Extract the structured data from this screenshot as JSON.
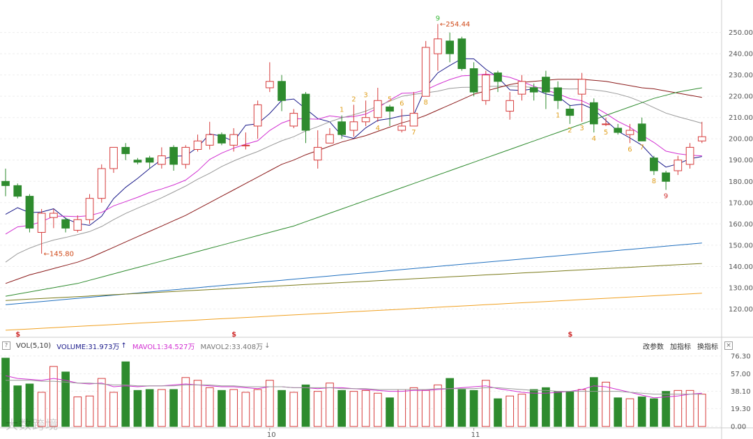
{
  "chart_data": {
    "type": "candlestick",
    "price_axis": {
      "ticks": [
        120,
        130,
        140,
        150,
        160,
        170,
        180,
        190,
        200,
        210,
        220,
        230,
        240,
        250
      ],
      "labels": [
        "120.00",
        "130.00",
        "140.00",
        "150.00",
        "160.00",
        "170.00",
        "180.00",
        "190.00",
        "200.00",
        "210.00",
        "220.00",
        "230.00",
        "240.00",
        "250.00"
      ],
      "ylim": [
        108,
        262
      ]
    },
    "volume_axis": {
      "labels": [
        "0.00",
        "19.30",
        "38.10",
        "57.00",
        "76.30"
      ],
      "ticks": [
        0,
        19.3,
        38.1,
        57.0,
        76.3
      ],
      "ylim": [
        0,
        80
      ]
    },
    "x_labels": [
      {
        "index": 22,
        "label": "10"
      },
      {
        "index": 39,
        "label": "11"
      }
    ],
    "candles": [
      [
        180,
        178,
        186,
        173
      ],
      [
        178,
        173,
        179,
        172
      ],
      [
        173,
        158,
        174,
        156
      ],
      [
        156,
        165,
        167,
        146
      ],
      [
        163,
        165,
        167,
        158
      ],
      [
        162,
        158,
        163,
        156
      ],
      [
        157,
        162,
        164,
        156
      ],
      [
        162,
        172,
        174,
        160
      ],
      [
        172,
        186,
        188,
        170
      ],
      [
        186,
        196,
        196,
        184
      ],
      [
        196,
        193,
        198,
        190
      ],
      [
        190,
        189,
        191,
        188
      ],
      [
        191,
        189,
        192,
        186
      ],
      [
        188,
        192,
        196,
        186
      ],
      [
        196,
        188,
        197,
        185
      ],
      [
        188,
        196,
        197,
        186
      ],
      [
        195,
        199,
        202,
        194
      ],
      [
        197,
        202,
        208,
        195
      ],
      [
        202,
        198,
        203,
        197
      ],
      [
        197,
        202,
        205,
        194
      ],
      [
        197,
        197,
        203,
        195
      ],
      [
        206,
        216,
        218,
        200
      ],
      [
        224,
        227,
        236,
        222
      ],
      [
        227,
        218,
        230,
        213
      ],
      [
        206,
        212,
        214,
        205
      ],
      [
        221,
        204,
        222,
        198
      ],
      [
        190,
        196,
        204,
        186
      ],
      [
        198,
        202,
        205,
        198
      ],
      [
        208,
        202,
        211,
        200
      ],
      [
        204,
        208,
        216,
        201
      ],
      [
        208,
        210,
        218,
        206
      ],
      [
        210,
        218,
        224,
        208
      ],
      [
        215,
        213,
        216,
        206
      ],
      [
        204,
        206,
        214,
        203
      ],
      [
        206,
        212,
        222,
        206
      ],
      [
        220,
        243,
        246,
        220
      ],
      [
        240,
        247,
        254,
        232
      ],
      [
        246,
        240,
        250,
        236
      ],
      [
        247,
        233,
        248,
        232
      ],
      [
        233,
        222,
        236,
        220
      ],
      [
        218,
        230,
        232,
        216
      ],
      [
        231,
        227,
        232,
        222
      ],
      [
        213,
        218,
        222,
        209
      ],
      [
        221,
        227,
        230,
        218
      ],
      [
        224,
        222,
        226,
        218
      ],
      [
        229,
        222,
        232,
        214
      ],
      [
        224,
        218,
        227,
        214
      ],
      [
        214,
        211,
        216,
        207
      ],
      [
        221,
        228,
        231,
        208
      ],
      [
        217,
        207,
        219,
        203
      ],
      [
        207,
        207,
        210,
        206
      ],
      [
        205,
        203,
        207,
        202
      ],
      [
        202,
        204,
        207,
        198
      ],
      [
        207,
        199,
        210,
        199
      ],
      [
        191,
        185,
        192,
        183
      ],
      [
        184,
        180,
        185,
        176
      ],
      [
        185,
        190,
        192,
        183
      ],
      [
        188,
        196,
        198,
        186
      ],
      [
        199,
        201,
        208,
        198
      ]
    ],
    "volumes": [
      74,
      44,
      46,
      37,
      65,
      59,
      32,
      33,
      52,
      37,
      70,
      39,
      40,
      40,
      40,
      53,
      50,
      42,
      39,
      40,
      37,
      40,
      50,
      39,
      37,
      45,
      38,
      47,
      39,
      38,
      39,
      36,
      31,
      40,
      42,
      39,
      45,
      52,
      40,
      39,
      50,
      30,
      33,
      35,
      40,
      42,
      38,
      38,
      40,
      53,
      48,
      31,
      30,
      32,
      30,
      38,
      39,
      39,
      35
    ],
    "ma_lines": [
      {
        "name": "MA5",
        "color": "#1a1a8a",
        "values": [
          164.5,
          167.6,
          165.3,
          165.6,
          167.1,
          162.6,
          160.2,
          159.3,
          163.6,
          171.9,
          177.2,
          181.4,
          186.0,
          190.3,
          191.8,
          192.0,
          196.0,
          202.3,
          201.3,
          198.8,
          206.4,
          207.1,
          211.9,
          218.1,
          218.7,
          214.1,
          209.5,
          208.0,
          201.5,
          200.2,
          205.2,
          208.7,
          209.5,
          210.8,
          211.3,
          224.2,
          231.0,
          234.5,
          237.7,
          237.6,
          232.7,
          229.0,
          223.0,
          222.7,
          223.5,
          221.1,
          220.0,
          215.6,
          216.3,
          213.8,
          208.6,
          203.6,
          200.4,
          197.0,
          190.9,
          186.7,
          188.2,
          190.6,
          191.7
        ]
      },
      {
        "name": "MA10",
        "color": "#d12ed1",
        "values": [
          155.2,
          158.6,
          159.3,
          161.0,
          163.6,
          163.6,
          163.4,
          163.9,
          165.4,
          168.5,
          170.5,
          172.5,
          174.8,
          176.4,
          178.3,
          180.6,
          184.9,
          190.3,
          193.3,
          195.6,
          197.5,
          199.1,
          203.9,
          207.4,
          209.4,
          209.4,
          209.2,
          210.8,
          210.1,
          210.5,
          211.6,
          214.5,
          218.2,
          221.4,
          221.6,
          223.0,
          225.6,
          227.9,
          229.6,
          229.9,
          230.4,
          230.0,
          228.9,
          226.9,
          224.7,
          222.9,
          221.2,
          218.9,
          217.9,
          215.2,
          211.9,
          208.2,
          205.4,
          201.7,
          198.3,
          194.2,
          193.0,
          192.3,
          192.0
        ]
      },
      {
        "name": "MA20",
        "color": "#999999",
        "values": [
          142.0,
          146.0,
          148.6,
          150.7,
          152.4,
          153.6,
          155.0,
          156.4,
          158.8,
          162.0,
          164.9,
          167.4,
          169.8,
          172.3,
          175.0,
          177.8,
          181.0,
          183.8,
          187.0,
          189.6,
          191.9,
          194.0,
          196.6,
          199.1,
          201.0,
          203.7,
          205.7,
          208.0,
          209.9,
          211.3,
          213.0,
          215.4,
          217.7,
          220.0,
          220.9,
          221.6,
          222.4,
          223.7,
          224.2,
          224.3,
          224.6,
          224.7,
          224.8,
          224.5,
          224.2,
          224.0,
          223.6,
          223.4,
          223.5,
          223.0,
          222.3,
          221.1,
          219.5,
          217.3,
          214.7,
          212.1,
          210.4,
          208.9,
          207.3
        ]
      },
      {
        "name": "MA30",
        "color": "#8b1a1a",
        "values": [
          132.0,
          134.0,
          136.0,
          137.5,
          139.0,
          140.5,
          142.0,
          144.0,
          146.5,
          149.0,
          151.5,
          154.0,
          156.5,
          159.0,
          161.5,
          164.0,
          167.0,
          170.0,
          173.0,
          176.0,
          179.0,
          182.0,
          185.0,
          188.0,
          190.0,
          192.5,
          194.5,
          196.5,
          198.5,
          200.0,
          201.5,
          203.5,
          205.5,
          207.5,
          209.0,
          211.0,
          213.5,
          216.0,
          218.5,
          221.0,
          222.5,
          224.0,
          225.5,
          226.5,
          227.0,
          227.5,
          228.0,
          228.0,
          228.0,
          227.5,
          227.0,
          226.0,
          225.0,
          224.0,
          223.5,
          222.5,
          221.5,
          220.5,
          219.5
        ]
      },
      {
        "name": "MA60",
        "color": "#2e8b2e",
        "values": [
          126.0,
          127.0,
          128.0,
          129.0,
          130.0,
          131.0,
          132.0,
          133.5,
          135.0,
          136.5,
          138.0,
          139.5,
          141.0,
          142.5,
          144.0,
          145.5,
          147.0,
          148.5,
          150.0,
          151.5,
          153.0,
          154.5,
          156.0,
          157.5,
          159.0,
          161.0,
          163.0,
          165.0,
          167.0,
          169.0,
          171.0,
          173.0,
          175.0,
          177.0,
          179.0,
          181.0,
          183.0,
          185.0,
          187.0,
          189.0,
          191.0,
          193.0,
          195.0,
          197.0,
          199.0,
          201.0,
          203.0,
          205.0,
          207.0,
          209.0,
          211.0,
          213.0,
          215.0,
          217.0,
          219.0,
          220.5,
          222.0,
          223.0,
          224.0
        ]
      },
      {
        "name": "MA120",
        "color": "#1f6fbf",
        "values": [
          122.0,
          122.5,
          123.0,
          123.5,
          124.0,
          124.5,
          125.0,
          125.5,
          126.0,
          126.5,
          127.0,
          127.5,
          128.0,
          128.5,
          129.0,
          129.5,
          130.0,
          130.5,
          131.0,
          131.5,
          132.0,
          132.5,
          133.0,
          133.5,
          134.0,
          134.5,
          135.0,
          135.5,
          136.0,
          136.5,
          137.0,
          137.5,
          138.0,
          138.5,
          139.0,
          139.5,
          140.0,
          140.5,
          141.0,
          141.5,
          142.0,
          142.5,
          143.0,
          143.5,
          144.0,
          144.5,
          145.0,
          145.5,
          146.0,
          146.5,
          147.0,
          147.5,
          148.0,
          148.5,
          149.0,
          149.5,
          150.0,
          150.5,
          151.0
        ]
      },
      {
        "name": "MA250",
        "color": "#7a7a1a",
        "values": [
          124.0,
          124.3,
          124.6,
          124.9,
          125.2,
          125.5,
          125.8,
          126.1,
          126.4,
          126.7,
          127.0,
          127.3,
          127.6,
          127.9,
          128.2,
          128.5,
          128.8,
          129.1,
          129.4,
          129.7,
          130.0,
          130.3,
          130.6,
          130.9,
          131.2,
          131.5,
          131.8,
          132.1,
          132.4,
          132.7,
          133.0,
          133.3,
          133.6,
          133.9,
          134.2,
          134.5,
          134.8,
          135.1,
          135.4,
          135.7,
          136.0,
          136.3,
          136.6,
          136.9,
          137.2,
          137.5,
          137.8,
          138.1,
          138.4,
          138.7,
          139.0,
          139.3,
          139.6,
          139.9,
          140.2,
          140.5,
          140.8,
          141.1,
          141.4
        ]
      },
      {
        "name": "MA500",
        "color": "#f0a020",
        "values": [
          110.0,
          110.3,
          110.6,
          110.9,
          111.2,
          111.5,
          111.8,
          112.1,
          112.4,
          112.7,
          113.0,
          113.3,
          113.6,
          113.9,
          114.2,
          114.5,
          114.8,
          115.1,
          115.4,
          115.7,
          116.0,
          116.3,
          116.6,
          116.9,
          117.2,
          117.5,
          117.8,
          118.1,
          118.4,
          118.7,
          119.0,
          119.3,
          119.6,
          119.9,
          120.2,
          120.5,
          120.8,
          121.1,
          121.4,
          121.7,
          122.0,
          122.3,
          122.6,
          122.9,
          123.2,
          123.5,
          123.8,
          124.1,
          124.4,
          124.7,
          125.0,
          125.3,
          125.6,
          125.9,
          126.2,
          126.5,
          126.8,
          127.1,
          127.4
        ]
      }
    ],
    "vol_ma": [
      {
        "name": "MAVOL1",
        "color": "#d12ed1",
        "values": [
          55,
          52,
          51,
          50,
          52,
          50,
          47,
          46,
          47,
          43,
          44,
          43,
          44,
          44,
          45,
          46,
          45,
          44,
          43,
          43,
          42,
          41,
          43,
          43,
          42,
          42,
          41,
          42,
          42,
          41,
          40,
          39,
          38,
          38,
          39,
          39,
          40,
          41,
          42,
          43,
          44,
          41,
          39,
          37,
          36,
          36,
          37,
          38,
          40,
          44,
          43,
          40,
          37,
          34,
          31,
          32,
          33,
          35,
          36
        ]
      },
      {
        "name": "MAVOL2",
        "color": "#999999",
        "values": [
          50,
          50,
          50,
          49,
          49,
          48,
          47,
          47,
          46,
          45,
          45,
          44,
          44,
          44,
          44,
          45,
          45,
          45,
          44,
          44,
          43,
          43,
          43,
          43,
          42,
          42,
          42,
          42,
          41,
          41,
          41,
          40,
          40,
          40,
          40,
          40,
          41,
          41,
          41,
          41,
          42,
          42,
          41,
          40,
          39,
          39,
          38,
          38,
          38,
          38,
          38,
          38,
          37,
          36,
          35,
          35,
          35,
          35,
          35
        ]
      }
    ],
    "annotations": [
      {
        "index": 3,
        "text": "145.80",
        "color": "#d04a1a",
        "price": 146
      },
      {
        "index": 36,
        "text": "254.44",
        "color": "#d04a1a",
        "price": 254
      }
    ],
    "td_labels": [
      {
        "index": 28,
        "text": "1",
        "color": "#e0a020",
        "pos": "above"
      },
      {
        "index": 29,
        "text": "2",
        "color": "#e0a020",
        "pos": "above"
      },
      {
        "index": 30,
        "text": "3",
        "color": "#e0a020",
        "pos": "above"
      },
      {
        "index": 31,
        "text": "4",
        "color": "#e0a020",
        "pos": "below"
      },
      {
        "index": 32,
        "text": "5",
        "color": "#e0a020",
        "pos": "above"
      },
      {
        "index": 33,
        "text": "6",
        "color": "#e0a020",
        "pos": "above"
      },
      {
        "index": 34,
        "text": "7",
        "color": "#e0a020",
        "pos": "below"
      },
      {
        "index": 35,
        "text": "8",
        "color": "#e0a020",
        "pos": "below"
      },
      {
        "index": 36,
        "text": "9",
        "color": "#38b838",
        "pos": "above"
      },
      {
        "index": 46,
        "text": "1",
        "color": "#e0a020",
        "pos": "below"
      },
      {
        "index": 47,
        "text": "2",
        "color": "#e0a020",
        "pos": "below"
      },
      {
        "index": 48,
        "text": "3",
        "color": "#e0a020",
        "pos": "below"
      },
      {
        "index": 49,
        "text": "4",
        "color": "#e0a020",
        "pos": "below"
      },
      {
        "index": 50,
        "text": "5",
        "color": "#e0a020",
        "pos": "below"
      },
      {
        "index": 52,
        "text": "6",
        "color": "#e0a020",
        "pos": "below"
      },
      {
        "index": 53,
        "text": "7",
        "color": "#e0a020",
        "pos": "below"
      },
      {
        "index": 54,
        "text": "8",
        "color": "#e0a020",
        "pos": "below"
      },
      {
        "index": 55,
        "text": "9",
        "color": "#d03030",
        "pos": "below"
      }
    ],
    "s_markers": [
      1,
      19,
      47
    ],
    "colors": {
      "up": "#d63b3b",
      "down": "#2e8b2e"
    }
  },
  "volume_header": {
    "question": "?",
    "vol_label": "VOL(5,10)",
    "volume_value": "VOLUME:31.973万",
    "mavol1": "MAVOL1:34.527万",
    "mavol2": "MAVOL2:33.408万",
    "btn_params": "改参数",
    "btn_add": "加指标",
    "btn_switch": "换指标",
    "close": "×"
  },
  "watermark": "大数跨境"
}
